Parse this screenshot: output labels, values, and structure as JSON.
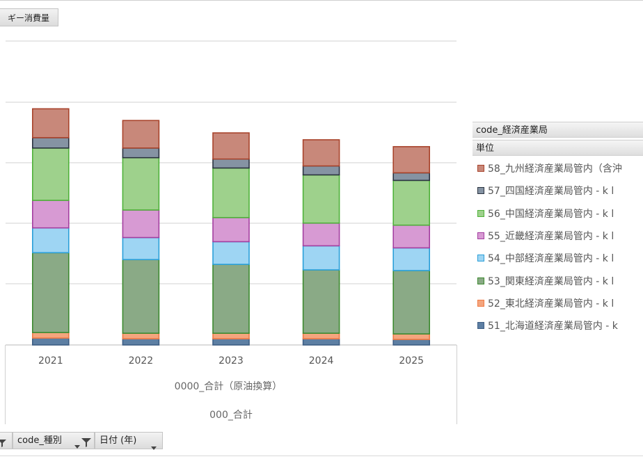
{
  "title_button": "ギー消費量",
  "chart_data": {
    "type": "bar",
    "stacked": true,
    "categories": [
      "2021",
      "2022",
      "2023",
      "2024",
      "2025"
    ],
    "series": [
      {
        "name": "51_北海道経済産業局管内 - k",
        "color": "#5d7fa3",
        "values": [
          10,
          9,
          9,
          9,
          8
        ]
      },
      {
        "name": "52_東北経済産業局管内 - k l",
        "color": "#f4a57e",
        "values": [
          8,
          8,
          8,
          8,
          8
        ]
      },
      {
        "name": "53_関東経済産業局管内 - k l",
        "color": "#8aaa86",
        "values": [
          116,
          107,
          100,
          92,
          92
        ]
      },
      {
        "name": "54_中部経済産業局管内 - k l",
        "color": "#9ed5f3",
        "values": [
          36,
          32,
          33,
          35,
          33
        ]
      },
      {
        "name": "55_近畿経済産業局管内 - k l",
        "color": "#d79ad3",
        "values": [
          40,
          40,
          35,
          33,
          33
        ]
      },
      {
        "name": "56_中国経済産業局管内 - k l",
        "color": "#9ed18c",
        "values": [
          76,
          76,
          72,
          70,
          65
        ]
      },
      {
        "name": "57_四国経済産業局管内 - k l",
        "color": "#8593a3",
        "values": [
          15,
          14,
          13,
          13,
          11
        ]
      },
      {
        "name": "58_九州経済産業局管内（含沖",
        "color": "#c8887a",
        "values": [
          42,
          40,
          38,
          38,
          38
        ]
      }
    ],
    "category_label": "0000_合計（原油換算）",
    "category_label_2": "000_合計",
    "grid": true,
    "legend_position": "right"
  },
  "legend": {
    "header_1": "code_経済産業局",
    "header_2": "単位"
  },
  "filters": {
    "type_label": "code_種別",
    "date_label": "日付 (年)"
  }
}
